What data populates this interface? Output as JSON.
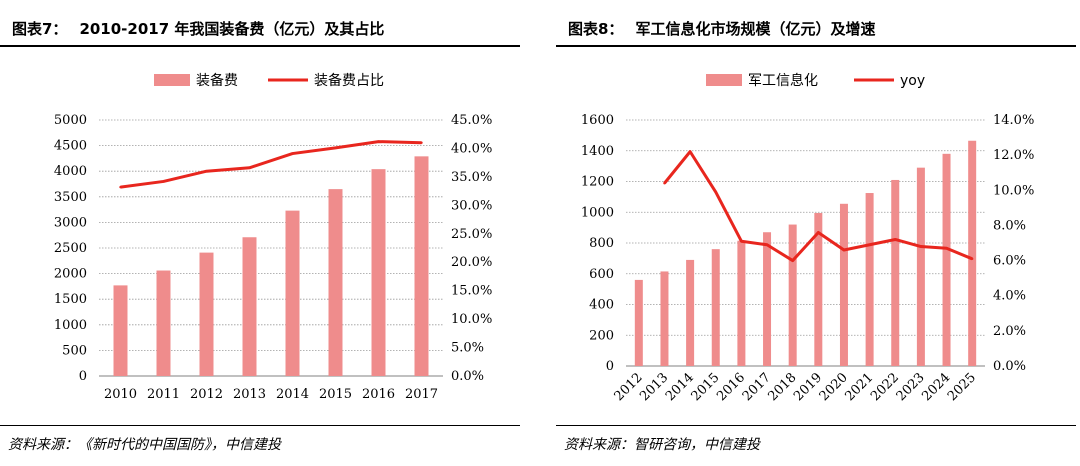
{
  "chart_data": [
    {
      "type": "bar",
      "title_num": "图表7：",
      "title": "2010-2017 年我国装备费（亿元）及其占比",
      "categories": [
        "2010",
        "2011",
        "2012",
        "2013",
        "2014",
        "2015",
        "2016",
        "2017"
      ],
      "series": [
        {
          "name": "装备费",
          "kind": "bar",
          "axis": "left",
          "color": "#ef8c8c",
          "values": [
            1770,
            2060,
            2410,
            2710,
            3230,
            3650,
            4040,
            4290
          ]
        },
        {
          "name": "装备费占比",
          "kind": "line",
          "axis": "right",
          "color": "#e8261e",
          "values": [
            33.2,
            34.2,
            36.0,
            36.6,
            39.1,
            40.1,
            41.2,
            41.0
          ]
        }
      ],
      "ylim_left": [
        0,
        5000
      ],
      "yticks_left": [
        "0",
        "500",
        "1000",
        "1500",
        "2000",
        "2500",
        "3000",
        "3500",
        "4000",
        "4500",
        "5000"
      ],
      "ylim_right": [
        0,
        45
      ],
      "yticks_right": [
        "0.0%",
        "5.0%",
        "10.0%",
        "15.0%",
        "20.0%",
        "25.0%",
        "30.0%",
        "35.0%",
        "40.0%",
        "45.0%"
      ],
      "xlabel": "",
      "ylabel": "",
      "grid": true,
      "legend": "top-center",
      "source": "资料来源：《新时代的中国国防》，中信建投"
    },
    {
      "type": "bar",
      "title_num": "图表8：",
      "title": "军工信息化市场规模（亿元）及增速",
      "categories": [
        "2012",
        "2013",
        "2014",
        "2015",
        "2016",
        "2017",
        "2018",
        "2019",
        "2020",
        "2021",
        "2022",
        "2023",
        "2024",
        "2025"
      ],
      "series": [
        {
          "name": "军工信息化",
          "kind": "bar",
          "axis": "left",
          "color": "#ef8c8c",
          "values": [
            560,
            615,
            690,
            760,
            815,
            870,
            920,
            995,
            1055,
            1125,
            1210,
            1290,
            1380,
            1465
          ]
        },
        {
          "name": "yoy",
          "kind": "line",
          "axis": "right",
          "color": "#e8261e",
          "start_index": 1,
          "values": [
            null,
            10.4,
            12.2,
            9.9,
            7.1,
            6.9,
            6.0,
            7.6,
            6.6,
            6.9,
            7.2,
            6.8,
            6.7,
            6.1
          ]
        }
      ],
      "ylim_left": [
        0,
        1600
      ],
      "yticks_left": [
        "0",
        "200",
        "400",
        "600",
        "800",
        "1000",
        "1200",
        "1400",
        "1600"
      ],
      "ylim_right": [
        0,
        14
      ],
      "yticks_right": [
        "0.0%",
        "2.0%",
        "4.0%",
        "6.0%",
        "8.0%",
        "10.0%",
        "12.0%",
        "14.0%"
      ],
      "xlabel": "",
      "ylabel": "",
      "grid": true,
      "legend": "top-center",
      "x_tick_rotation": "diagonal",
      "source": "资料来源：智研咨询，中信建投"
    }
  ]
}
